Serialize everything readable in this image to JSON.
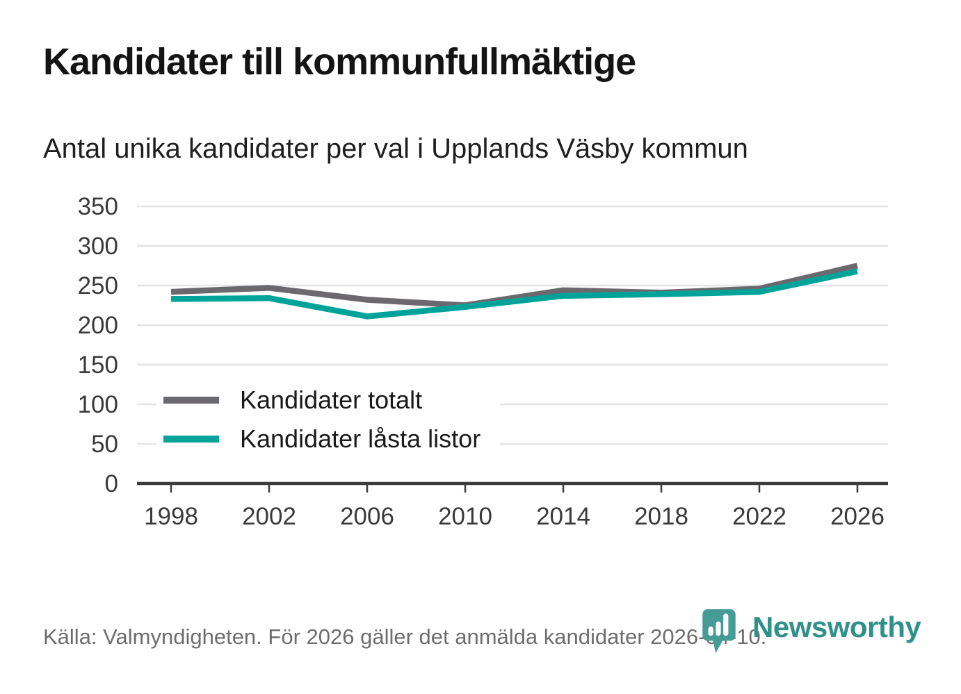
{
  "title": "Kandidater till kommunfullmäktige",
  "subtitle": "Antal unika kandidater per val i Upplands Väsby kommun",
  "source": "Källa: Valmyndigheten. För 2026 gäller det anmälda kandidater 2026-04-10.",
  "branding": {
    "logo_text": "Newsworthy",
    "logo_icon": "bar-chart-pin-icon",
    "logo_color": "#459b95",
    "logo_text_color": "#2f918a"
  },
  "colors": {
    "series_total": "#6c696e",
    "series_locked": "#00a39a",
    "gridline": "#e4e4e4",
    "axis_line": "#3c3c3c",
    "axis_label": "#3a3a3a",
    "title_text": "#141414",
    "source_text": "#6d6d6d"
  },
  "chart_data": {
    "type": "line",
    "title": "Kandidater till kommunfullmäktige",
    "subtitle": "Antal unika kandidater per val i Upplands Väsby kommun",
    "x": [
      1998,
      2002,
      2006,
      2010,
      2014,
      2018,
      2022,
      2026
    ],
    "series": [
      {
        "name": "Kandidater totalt",
        "color": "#6c696e",
        "values": [
          242,
          247,
          232,
          225,
          244,
          241,
          246,
          275
        ]
      },
      {
        "name": "Kandidater låsta listor",
        "color": "#00a39a",
        "values": [
          233,
          234,
          211,
          223,
          237,
          239,
          242,
          268
        ]
      }
    ],
    "ylim": [
      0,
      350
    ],
    "yticks": [
      0,
      50,
      100,
      150,
      200,
      250,
      300,
      350
    ],
    "grid": "horizontal",
    "legend_position": "inside-left",
    "source_note": "Källa: Valmyndigheten. För 2026 gäller det anmälda kandidater 2026-04-10."
  }
}
